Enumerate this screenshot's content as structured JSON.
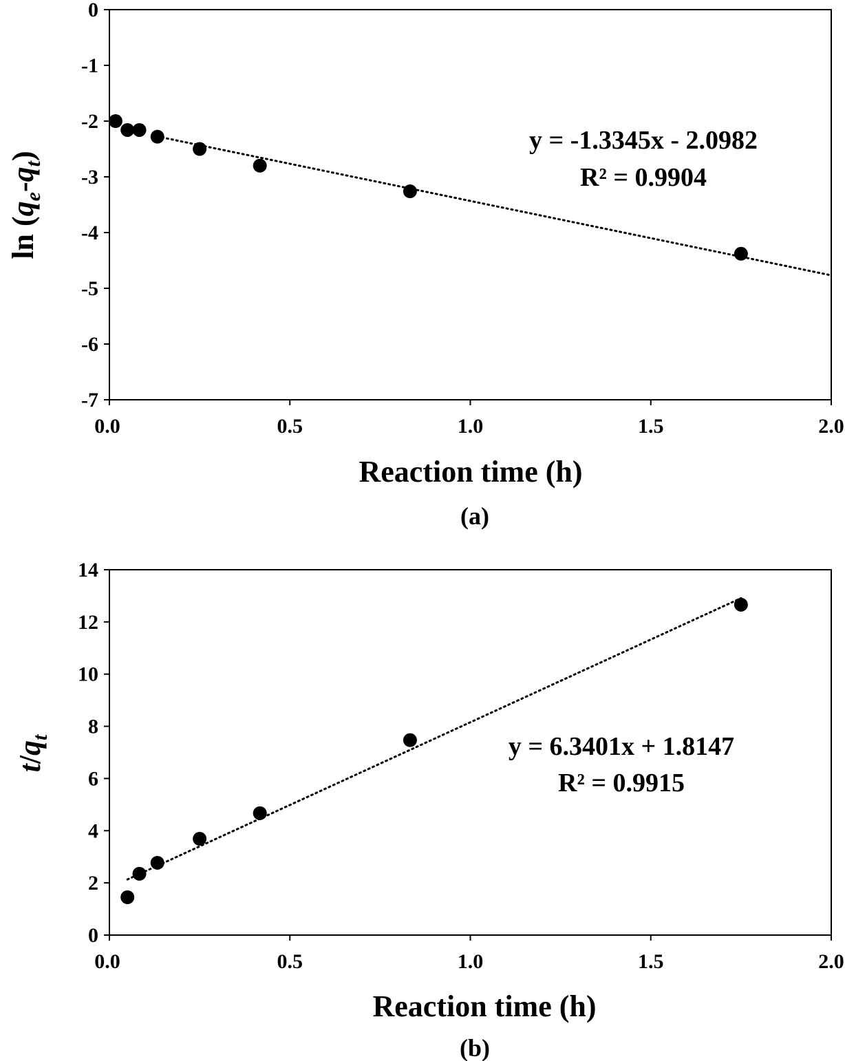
{
  "chart_data": [
    {
      "type": "scatter",
      "panel_label": "(a)",
      "xlabel": "Reaction time (h)",
      "ylabel": {
        "prefix": "ln (",
        "v1": "q",
        "s1": "e",
        "mid": "-",
        "v2": "q",
        "s2": "t",
        "suffix": ")"
      },
      "xlim": [
        0,
        2.0
      ],
      "ylim": [
        -7,
        0
      ],
      "xticks": [
        "0.0",
        "0.5",
        "1.0",
        "1.5",
        "2.0"
      ],
      "yticks": [
        "0",
        "-1",
        "-2",
        "-3",
        "-4",
        "-5",
        "-6",
        "-7"
      ],
      "x": [
        0.017,
        0.05,
        0.083,
        0.133,
        0.25,
        0.417,
        0.833,
        1.75
      ],
      "y": [
        -2.0,
        -2.16,
        -2.16,
        -2.28,
        -2.5,
        -2.8,
        -3.26,
        -4.38
      ],
      "trendline": {
        "slope": -1.3345,
        "intercept": -2.0982,
        "x_range": [
          0.133,
          2.0
        ],
        "style": "dotted"
      },
      "equation": "y = -1.3345x - 2.0982",
      "r2": "R² = 0.9904",
      "marker_color": "#000000"
    },
    {
      "type": "scatter",
      "panel_label": "(b)",
      "xlabel": "Reaction time (h)",
      "ylabel": {
        "v1": "t",
        "mid": "/",
        "v2": "q",
        "s2": "t"
      },
      "xlim": [
        0,
        2.0
      ],
      "ylim": [
        0,
        14
      ],
      "xticks": [
        "0.0",
        "0.5",
        "1.0",
        "1.5",
        "2.0"
      ],
      "yticks": [
        "0",
        "2",
        "4",
        "6",
        "8",
        "10",
        "12",
        "14"
      ],
      "x": [
        0.05,
        0.083,
        0.133,
        0.25,
        0.417,
        0.833,
        1.75
      ],
      "y": [
        1.45,
        2.35,
        2.77,
        3.69,
        4.67,
        7.47,
        12.66
      ],
      "trendline": {
        "slope": 6.3401,
        "intercept": 1.8147,
        "x_range": [
          0.05,
          1.75
        ],
        "style": "dotted"
      },
      "equation": "y = 6.3401x + 1.8147",
      "r2": "R² = 0.9915",
      "marker_color": "#000000"
    }
  ]
}
